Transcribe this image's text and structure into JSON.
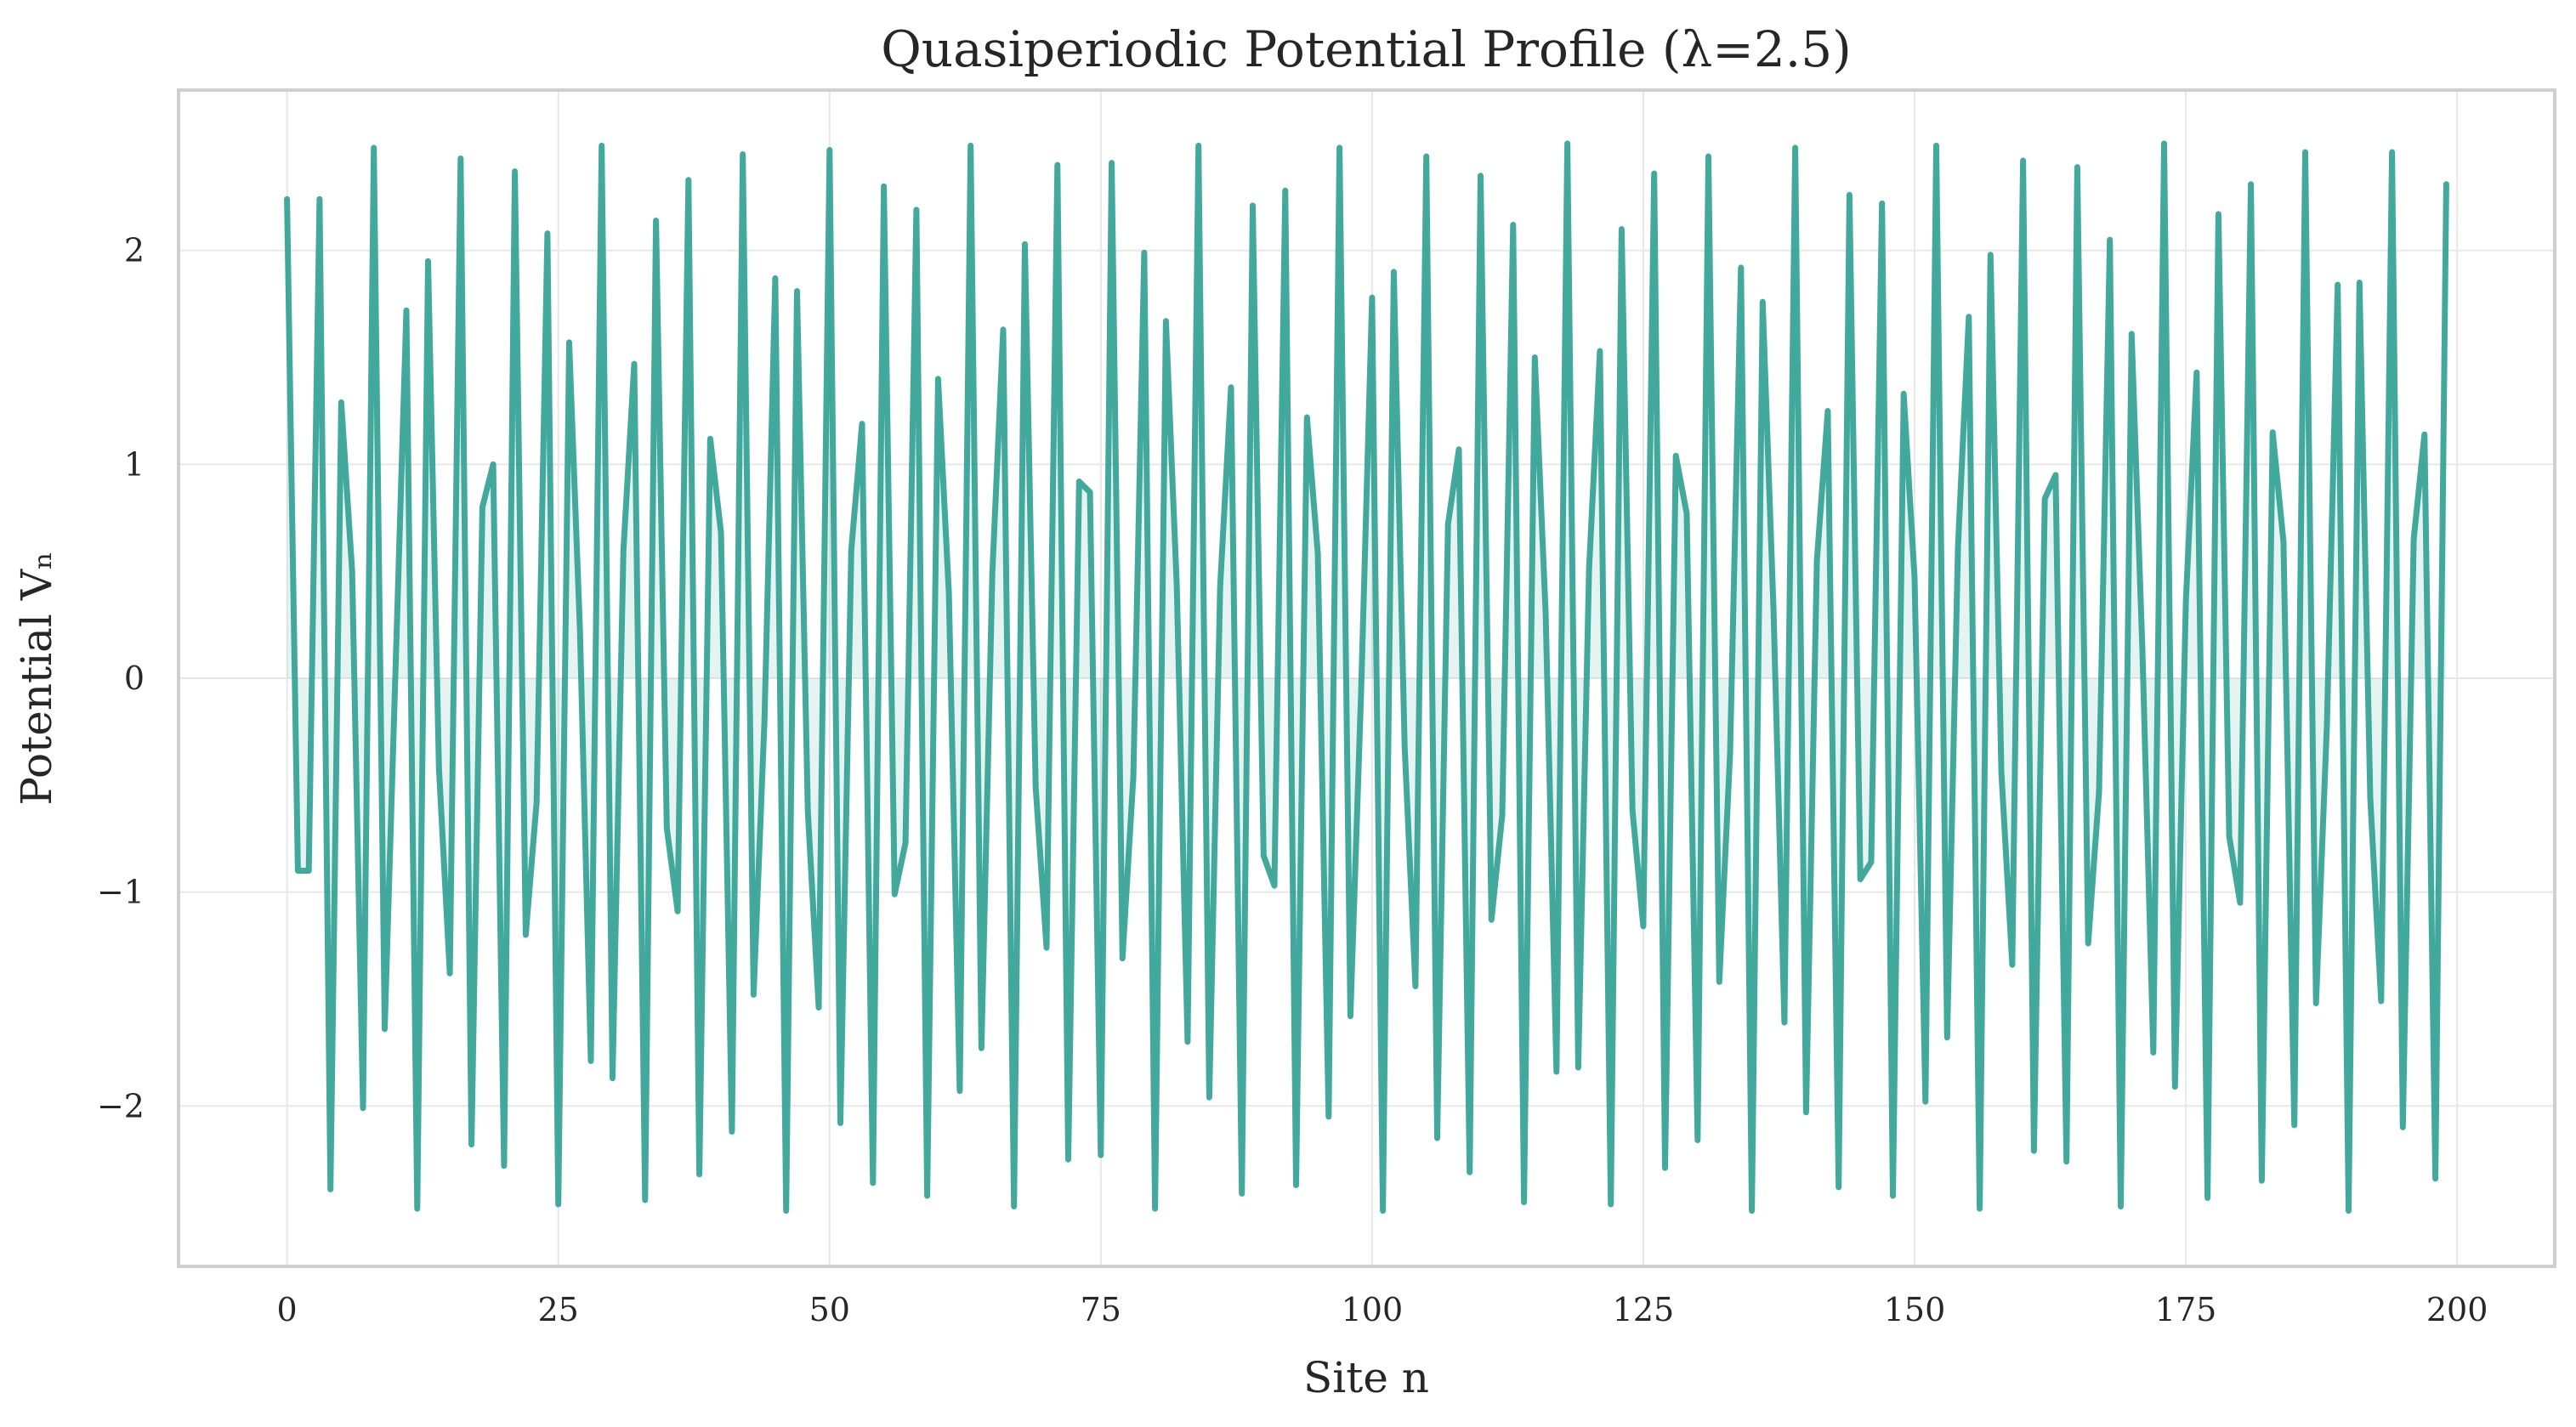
{
  "chart_data": {
    "type": "line",
    "title": "Quasiperiodic Potential Profile (λ=2.5)",
    "xlabel": "Site n",
    "ylabel": "Potential Vₙ",
    "xlim": [
      -10,
      209
    ],
    "ylim": [
      -2.75,
      2.75
    ],
    "xticks": [
      0,
      25,
      50,
      75,
      100,
      125,
      150,
      175,
      200
    ],
    "xtick_labels": [
      "0",
      "25",
      "50",
      "75",
      "100",
      "125",
      "150",
      "175",
      "200"
    ],
    "yticks": [
      -2,
      -1,
      0,
      1,
      2
    ],
    "ytick_labels": [
      "−2",
      "−1",
      "0",
      "1",
      "2"
    ],
    "grid": true,
    "legend": "none",
    "fill_to_zero": true,
    "series": [
      {
        "color": "#2a9d8f",
        "x": [
          0,
          1,
          2,
          3,
          4,
          5,
          6,
          7,
          8,
          9,
          10,
          11,
          12,
          13,
          14,
          15,
          16,
          17,
          18,
          19,
          20,
          21,
          22,
          23,
          24,
          25,
          26,
          27,
          28,
          29,
          30,
          31,
          32,
          33,
          34,
          35,
          36,
          37,
          38,
          39,
          40,
          41,
          42,
          43,
          44,
          45,
          46,
          47,
          48,
          49,
          50,
          51,
          52,
          53,
          54,
          55,
          56,
          57,
          58,
          59,
          60,
          61,
          62,
          63,
          64,
          65,
          66,
          67,
          68,
          69,
          70,
          71,
          72,
          73,
          74,
          75,
          76,
          77,
          78,
          79,
          80,
          81,
          82,
          83,
          84,
          85,
          86,
          87,
          88,
          89,
          90,
          91,
          92,
          93,
          94,
          95,
          96,
          97,
          98,
          99,
          100,
          101,
          102,
          103,
          104,
          105,
          106,
          107,
          108,
          109,
          110,
          111,
          112,
          113,
          114,
          115,
          116,
          117,
          118,
          119,
          120,
          121,
          122,
          123,
          124,
          125,
          126,
          127,
          128,
          129,
          130,
          131,
          132,
          133,
          134,
          135,
          136,
          137,
          138,
          139,
          140,
          141,
          142,
          143,
          144,
          145,
          146,
          147,
          148,
          149,
          150,
          151,
          152,
          153,
          154,
          155,
          156,
          157,
          158,
          159,
          160,
          161,
          162,
          163,
          164,
          165,
          166,
          167,
          168,
          169,
          170,
          171,
          172,
          173,
          174,
          175,
          176,
          177,
          178,
          179,
          180,
          181,
          182,
          183,
          184,
          185,
          186,
          187,
          188,
          189,
          190,
          191,
          192,
          193,
          194,
          195,
          196,
          197,
          198,
          199
        ],
        "y": [
          2.24,
          -0.9,
          -0.9,
          2.24,
          -2.39,
          1.29,
          0.5,
          -2.01,
          2.48,
          -1.64,
          0.05,
          1.72,
          -2.48,
          1.95,
          -0.42,
          -1.38,
          2.43,
          -2.18,
          0.8,
          1.0,
          -2.28,
          2.37,
          -1.2,
          -0.58,
          2.08,
          -2.46,
          1.57,
          0.22,
          -1.79,
          2.49,
          -1.87,
          0.6,
          1.47,
          -2.44,
          2.14,
          -0.7,
          -1.09,
          2.33,
          -2.32,
          1.12,
          0.68,
          -2.12,
          2.45,
          -1.48,
          -0.2,
          1.87,
          -2.49,
          1.81,
          -0.62,
          -1.54,
          2.47,
          -2.08,
          0.6,
          1.19,
          -2.36,
          2.3,
          -1.01,
          -0.77,
          2.19,
          -2.42,
          1.4,
          0.4,
          -1.93,
          2.49,
          -1.73,
          0.49,
          1.63,
          -2.47,
          2.03,
          -0.51,
          -1.26,
          2.4,
          -2.25,
          0.92,
          0.87,
          -2.23,
          2.41,
          -1.31,
          -0.46,
          1.99,
          -2.48,
          1.67,
          0.43,
          -1.7,
          2.49,
          -1.96,
          0.43,
          1.36,
          -2.41,
          2.21,
          -0.83,
          -0.97,
          2.28,
          -2.37,
          1.22,
          0.58,
          -2.05,
          2.48,
          -1.58,
          -0.05,
          1.78,
          -2.49,
          1.9,
          -0.32,
          -1.44,
          2.44,
          -2.15,
          0.72,
          1.07,
          -2.31,
          2.35,
          -1.13,
          -0.64,
          2.12,
          -2.45,
          1.5,
          0.3,
          -1.84,
          2.5,
          -1.82,
          0.51,
          1.53,
          -2.46,
          2.1,
          -0.62,
          -1.16,
          2.36,
          -2.29,
          1.04,
          0.77,
          -2.16,
          2.44,
          -1.42,
          -0.35,
          1.92,
          -2.49,
          1.76,
          0.32,
          -1.61,
          2.48,
          -2.03,
          0.55,
          1.25,
          -2.38,
          2.26,
          -0.94,
          -0.86,
          2.22,
          -2.42,
          1.33,
          0.47,
          -1.98,
          2.49,
          -1.68,
          0.62,
          1.69,
          -2.48,
          1.98,
          -0.44,
          -1.34,
          2.42,
          -2.21,
          0.84,
          0.95,
          -2.26,
          2.39,
          -1.24,
          -0.53,
          2.05,
          -2.47,
          1.61,
          0.13,
          -1.75,
          2.5,
          -1.91,
          0.36,
          1.43,
          -2.43,
          2.17,
          -0.74,
          -1.05,
          2.31,
          -2.35,
          1.15,
          0.64,
          -2.09,
          2.46,
          -1.52,
          -0.22,
          1.84,
          -2.49,
          1.85,
          -0.56,
          -1.51,
          2.46,
          -2.1,
          0.65,
          1.14,
          -2.34,
          2.31
        ]
      }
    ]
  }
}
